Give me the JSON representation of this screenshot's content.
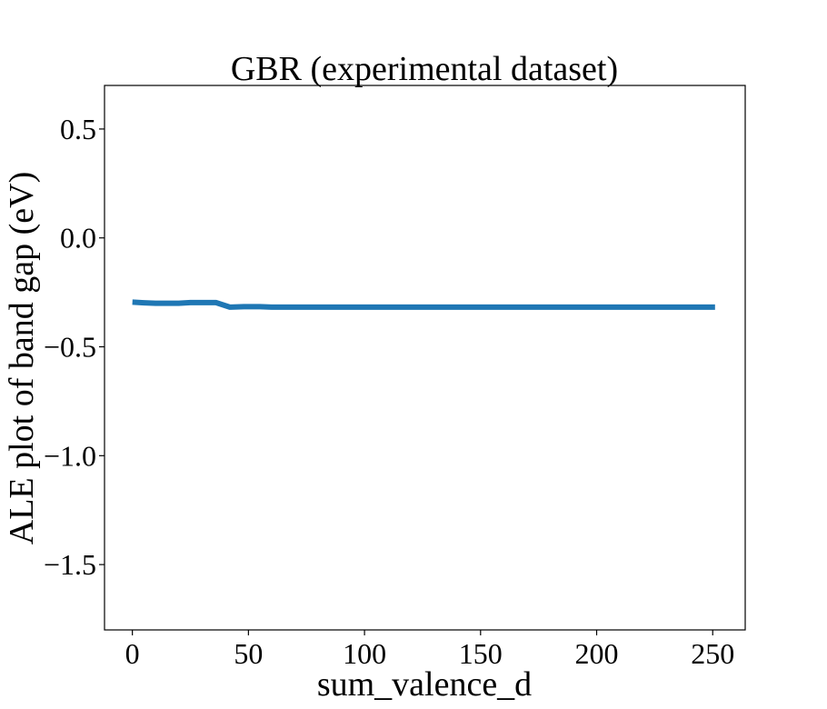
{
  "chart_data": {
    "type": "line",
    "title": "GBR (experimental dataset)",
    "xlabel": "sum_valence_d",
    "ylabel": "ALE plot of band gap (eV)",
    "xlim": [
      -12,
      264
    ],
    "ylim": [
      -1.8,
      0.7
    ],
    "xticks": [
      0,
      50,
      100,
      150,
      200,
      250
    ],
    "xtick_labels": [
      "0",
      "50",
      "100",
      "150",
      "200",
      "250"
    ],
    "yticks": [
      0.5,
      0.0,
      -0.5,
      -1.0,
      -1.5
    ],
    "ytick_labels": [
      "0.5",
      "0.0",
      "−0.5",
      "−1.0",
      "−1.5"
    ],
    "grid": false,
    "series": [
      {
        "color": "#1f77b4",
        "x": [
          0,
          5,
          10,
          15,
          20,
          25,
          30,
          36,
          42,
          48,
          55,
          60,
          80,
          100,
          150,
          200,
          251
        ],
        "y": [
          -0.295,
          -0.298,
          -0.3,
          -0.3,
          -0.3,
          -0.297,
          -0.297,
          -0.297,
          -0.318,
          -0.316,
          -0.316,
          -0.318,
          -0.318,
          -0.318,
          -0.318,
          -0.318,
          -0.318
        ]
      }
    ]
  }
}
